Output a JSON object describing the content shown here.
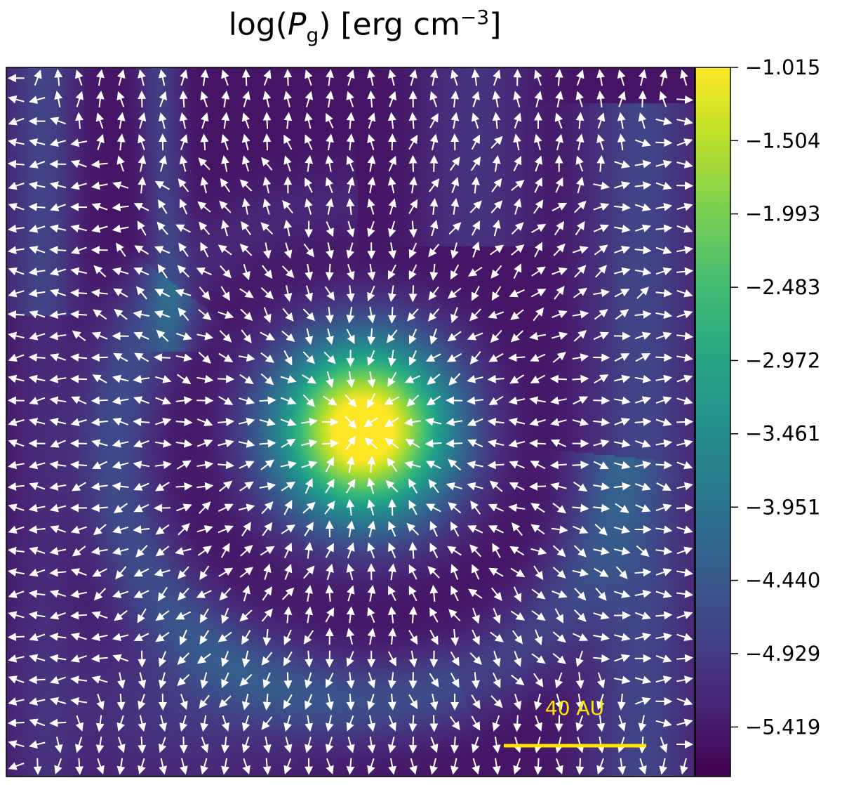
{
  "chart_data": {
    "type": "heatmap",
    "title": {
      "prefix": "log(",
      "var": "P",
      "sub": "g",
      "mid": ") [erg cm",
      "sup": "−3",
      "suffix": "]"
    },
    "colorbar": {
      "colormap": "viridis",
      "min": -5.75,
      "max": -1.015,
      "ticks": [
        "−1.015",
        "−1.504",
        "−1.993",
        "−2.483",
        "−2.972",
        "−3.461",
        "−3.951",
        "−4.440",
        "−4.929",
        "−5.419"
      ],
      "tick_values": [
        -1.015,
        -1.504,
        -1.993,
        -2.483,
        -2.972,
        -3.461,
        -3.951,
        -4.44,
        -4.929,
        -5.419
      ]
    },
    "vector_field": {
      "color": "#ffffff",
      "grid": [
        33,
        33
      ],
      "pattern": "radial from central clump"
    },
    "scale_bar": {
      "label": "40 AU",
      "color": "#ffe600"
    },
    "features": {
      "central_peak": -1.015,
      "background": -5.5,
      "ring_level": -4.6,
      "ring_arc_level": -4.4
    },
    "axes": {
      "xticks": [],
      "yticks": []
    }
  }
}
